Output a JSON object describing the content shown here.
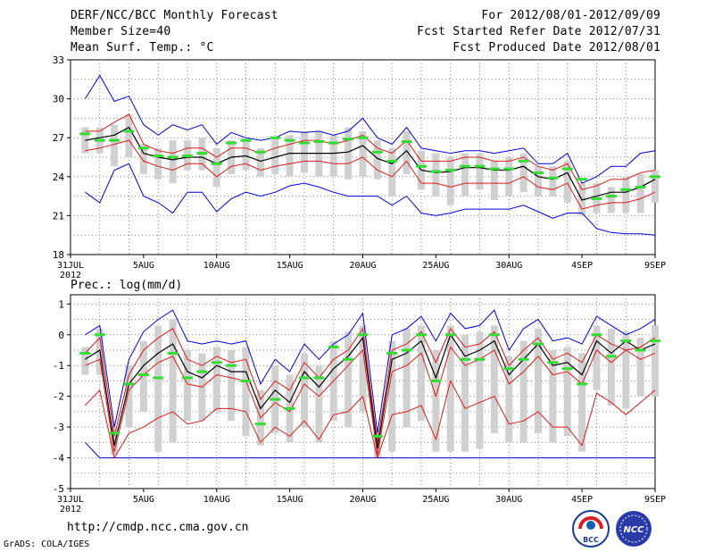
{
  "header": {
    "title": "DERF/NCC/BCC Monthly Forecast",
    "member_size": "Member Size=40",
    "variable": "Mean Surf. Temp.: °C",
    "forecast_period": "For 2012/08/01-2012/09/09",
    "fcst_started": "Fcst Started Refer Date 2012/07/31",
    "fcst_produced": "Fcst Produced Date 2012/08/01"
  },
  "footer": {
    "url": "http://cmdp.ncc.cma.gov.cn",
    "credit": "GrADS: COLA/IGES",
    "logo_left_text": "BCC",
    "logo_right_text": "NCC"
  },
  "colors": {
    "max_min": "#0000d8",
    "pct_band": "#d81c1c",
    "mean": "#000000",
    "box": "#d0d0d0",
    "observed": "#33dd33",
    "grid": "#888888"
  },
  "chart_data": [
    {
      "type": "line",
      "title": "Mean Surf. Temp.: °C",
      "x_tick_labels": [
        "31JUL",
        "5AUG",
        "10AUG",
        "15AUG",
        "20AUG",
        "25AUG",
        "30AUG",
        "4SEP",
        "9SEP"
      ],
      "x_tick_days": [
        0,
        5,
        10,
        15,
        20,
        25,
        30,
        35,
        40
      ],
      "x_year_label": "2012",
      "xlim": [
        0,
        40
      ],
      "ylim": [
        18,
        33
      ],
      "y_ticks": [
        18,
        21,
        24,
        27,
        30,
        33
      ],
      "days": [
        1,
        2,
        3,
        4,
        5,
        6,
        7,
        8,
        9,
        10,
        11,
        12,
        13,
        14,
        15,
        16,
        17,
        18,
        19,
        20,
        21,
        22,
        23,
        24,
        25,
        26,
        27,
        28,
        29,
        30,
        31,
        32,
        33,
        34,
        35,
        36,
        37,
        38,
        39,
        40
      ],
      "series": [
        {
          "name": "max",
          "values": [
            30.0,
            31.8,
            29.8,
            30.2,
            28.0,
            27.2,
            28.0,
            27.6,
            28.0,
            26.5,
            27.4,
            27.0,
            26.8,
            27.0,
            27.5,
            27.4,
            27.5,
            27.2,
            27.5,
            28.5,
            27.0,
            26.5,
            27.8,
            26.2,
            26.0,
            25.8,
            26.0,
            26.0,
            25.8,
            26.0,
            26.2,
            25.0,
            25.0,
            25.8,
            23.5,
            24.0,
            24.8,
            24.8,
            25.8,
            26.0
          ]
        },
        {
          "name": "p_upper",
          "values": [
            27.5,
            27.5,
            28.2,
            28.8,
            26.5,
            26.0,
            25.8,
            26.2,
            26.2,
            25.5,
            26.2,
            26.2,
            25.8,
            26.2,
            26.5,
            26.8,
            26.8,
            26.5,
            26.8,
            27.2,
            26.2,
            25.8,
            26.8,
            25.2,
            25.2,
            25.2,
            25.5,
            25.5,
            25.2,
            25.2,
            25.5,
            24.8,
            24.5,
            25.0,
            23.0,
            23.3,
            23.8,
            23.8,
            24.3,
            24.5
          ]
        },
        {
          "name": "mean",
          "values": [
            26.8,
            27.0,
            27.2,
            27.8,
            25.8,
            25.5,
            25.3,
            25.5,
            25.5,
            25.0,
            25.5,
            25.6,
            25.2,
            25.5,
            25.8,
            25.8,
            25.8,
            25.8,
            25.9,
            26.4,
            25.4,
            25.0,
            26.0,
            24.5,
            24.3,
            24.4,
            24.7,
            24.7,
            24.5,
            24.5,
            24.8,
            24.0,
            23.8,
            24.3,
            22.2,
            22.5,
            22.8,
            22.8,
            23.2,
            23.8
          ]
        },
        {
          "name": "p_lower",
          "values": [
            26.0,
            26.2,
            26.5,
            26.8,
            25.2,
            24.8,
            24.5,
            25.0,
            25.0,
            24.0,
            24.8,
            25.0,
            24.5,
            24.8,
            25.0,
            25.2,
            25.2,
            25.0,
            25.0,
            25.5,
            24.5,
            24.0,
            25.2,
            23.5,
            23.5,
            23.2,
            23.5,
            23.5,
            23.5,
            23.5,
            24.0,
            23.2,
            23.0,
            23.5,
            21.5,
            21.8,
            22.0,
            22.0,
            22.3,
            22.8
          ]
        },
        {
          "name": "min",
          "values": [
            22.8,
            22.0,
            24.5,
            25.0,
            22.5,
            22.0,
            21.2,
            22.8,
            22.8,
            21.3,
            22.3,
            22.8,
            22.5,
            22.8,
            23.3,
            23.5,
            23.2,
            22.8,
            22.5,
            22.5,
            22.5,
            21.8,
            22.5,
            21.2,
            21.0,
            21.2,
            21.5,
            21.5,
            21.5,
            21.5,
            21.8,
            21.3,
            20.8,
            21.2,
            21.2,
            20.0,
            19.7,
            19.6,
            19.6,
            19.5
          ]
        },
        {
          "name": "box_top",
          "values": [
            27.8,
            27.8,
            28.0,
            28.8,
            26.5,
            26.2,
            26.8,
            26.8,
            27.0,
            26.2,
            26.8,
            26.8,
            26.2,
            27.0,
            27.2,
            27.5,
            27.5,
            27.2,
            27.8,
            27.5,
            26.8,
            26.2,
            27.5,
            26.0,
            25.8,
            25.5,
            25.8,
            25.8,
            25.2,
            25.5,
            25.8,
            24.8,
            24.8,
            25.2,
            23.5,
            23.5,
            23.2,
            24.0,
            24.2,
            24.5
          ]
        },
        {
          "name": "box_bottom",
          "values": [
            25.8,
            25.8,
            24.8,
            25.5,
            24.2,
            23.8,
            23.5,
            24.5,
            24.5,
            23.2,
            24.2,
            24.5,
            24.0,
            24.2,
            24.0,
            24.3,
            24.0,
            24.0,
            23.8,
            24.0,
            23.8,
            22.5,
            24.2,
            23.0,
            22.5,
            21.8,
            22.5,
            23.0,
            22.2,
            22.5,
            22.8,
            22.5,
            22.5,
            22.0,
            21.0,
            21.2,
            21.2,
            21.2,
            21.2,
            22.0
          ]
        },
        {
          "name": "observed",
          "values": [
            27.3,
            26.8,
            26.8,
            27.5,
            26.2,
            25.6,
            25.5,
            25.6,
            25.8,
            25.0,
            26.6,
            26.8,
            25.9,
            27.0,
            26.8,
            26.6,
            26.7,
            26.6,
            26.9,
            27.0,
            25.9,
            25.2,
            26.7,
            24.8,
            24.4,
            24.5,
            24.8,
            24.8,
            24.6,
            24.6,
            25.2,
            24.3,
            23.9,
            24.6,
            23.8,
            22.3,
            22.5,
            23.0,
            23.2,
            24.0
          ]
        }
      ]
    },
    {
      "type": "line",
      "title": "Prec.: log(mm/d)",
      "x_tick_labels": [
        "31JUL",
        "5AUG",
        "10AUG",
        "15AUG",
        "20AUG",
        "25AUG",
        "30AUG",
        "4SEP",
        "9SEP"
      ],
      "x_tick_days": [
        0,
        5,
        10,
        15,
        20,
        25,
        30,
        35,
        40
      ],
      "x_year_label": "2012",
      "xlim": [
        0,
        40
      ],
      "ylim": [
        -5,
        1.3
      ],
      "y_ticks": [
        -5,
        -4,
        -3,
        -2,
        -1,
        0,
        1
      ],
      "days": [
        1,
        2,
        3,
        4,
        5,
        6,
        7,
        8,
        9,
        10,
        11,
        12,
        13,
        14,
        15,
        16,
        17,
        18,
        19,
        20,
        21,
        22,
        23,
        24,
        25,
        26,
        27,
        28,
        29,
        30,
        31,
        32,
        33,
        34,
        35,
        36,
        37,
        38,
        39,
        40
      ],
      "series": [
        {
          "name": "max",
          "values": [
            0.0,
            0.3,
            -3.0,
            -0.8,
            0.1,
            0.5,
            0.8,
            -0.2,
            -0.3,
            -0.2,
            -0.3,
            -0.2,
            -1.6,
            -0.8,
            -1.2,
            -0.3,
            -0.8,
            -0.3,
            0.0,
            0.7,
            -3.2,
            0.0,
            0.2,
            0.6,
            -0.2,
            0.7,
            0.2,
            0.3,
            0.8,
            -0.5,
            0.2,
            0.5,
            -0.2,
            -0.1,
            -0.3,
            0.6,
            0.3,
            0.0,
            0.2,
            0.5
          ]
        },
        {
          "name": "p_upper",
          "values": [
            -0.6,
            -0.1,
            -3.3,
            -1.3,
            -0.5,
            -0.1,
            0.2,
            -0.8,
            -1.0,
            -0.7,
            -0.9,
            -0.8,
            -2.1,
            -1.5,
            -1.8,
            -0.9,
            -1.4,
            -0.8,
            -0.5,
            0.2,
            -3.5,
            -0.5,
            -0.3,
            0.1,
            -0.9,
            0.2,
            -0.4,
            -0.3,
            0.1,
            -1.0,
            -0.5,
            -0.1,
            -0.8,
            -0.6,
            -0.9,
            0.0,
            -0.3,
            -0.5,
            -0.4,
            -0.1
          ]
        },
        {
          "name": "mean",
          "values": [
            -0.8,
            -0.5,
            -3.6,
            -1.6,
            -1.0,
            -0.6,
            -0.3,
            -1.2,
            -1.4,
            -1.0,
            -1.2,
            -1.2,
            -2.4,
            -1.8,
            -2.2,
            -1.2,
            -1.7,
            -1.1,
            -0.7,
            -0.1,
            -3.7,
            -0.8,
            -0.6,
            -0.2,
            -1.4,
            0.0,
            -0.7,
            -0.5,
            -0.2,
            -1.3,
            -0.8,
            -0.3,
            -1.0,
            -0.9,
            -1.3,
            -0.2,
            -0.6,
            -0.2,
            -0.5,
            -0.3
          ]
        },
        {
          "name": "p_lower",
          "values": [
            -1.0,
            -0.8,
            -3.8,
            -1.8,
            -1.3,
            -0.9,
            -0.7,
            -1.6,
            -1.7,
            -1.3,
            -1.4,
            -1.5,
            -2.7,
            -2.2,
            -2.5,
            -1.6,
            -2.0,
            -1.5,
            -1.0,
            -0.5,
            -3.9,
            -1.2,
            -1.0,
            -0.6,
            -2.0,
            -0.4,
            -1.0,
            -0.8,
            -0.5,
            -1.6,
            -1.2,
            -0.7,
            -1.3,
            -1.2,
            -1.6,
            -0.5,
            -0.9,
            -0.5,
            -0.8,
            -0.6
          ]
        },
        {
          "name": "p_low",
          "values": [
            -2.3,
            -1.8,
            -4.0,
            -3.2,
            -3.0,
            -2.7,
            -2.5,
            -2.9,
            -2.8,
            -2.4,
            -2.4,
            -2.5,
            -3.5,
            -3.0,
            -3.3,
            -2.8,
            -3.4,
            -2.6,
            -2.5,
            -2.0,
            -4.0,
            -2.6,
            -2.5,
            -2.3,
            -3.4,
            -1.5,
            -2.4,
            -2.2,
            -2.0,
            -2.9,
            -2.8,
            -2.5,
            -3.0,
            -3.0,
            -3.6,
            -1.9,
            -2.2,
            -2.6,
            -2.2,
            -1.8
          ]
        },
        {
          "name": "min",
          "values": [
            -3.5,
            -4.0,
            -4.0,
            -4.0,
            -4.0,
            -4.0,
            -4.0,
            -4.0,
            -4.0,
            -4.0,
            -4.0,
            -4.0,
            -4.0,
            -4.0,
            -4.0,
            -4.0,
            -4.0,
            -4.0,
            -4.0,
            -4.0,
            -4.0,
            -4.0,
            -4.0,
            -4.0,
            -4.0,
            -4.0,
            -4.0,
            -4.0,
            -4.0,
            -4.0,
            -4.0,
            -4.0,
            -4.0,
            -4.0,
            -4.0,
            -4.0,
            -4.0,
            -4.0,
            -4.0,
            -4.0
          ]
        },
        {
          "name": "box_top",
          "values": [
            -0.4,
            0.2,
            -3.0,
            -1.0,
            -0.2,
            0.3,
            0.5,
            -0.5,
            -0.6,
            -0.4,
            -0.5,
            -0.4,
            -1.8,
            -1.0,
            -1.3,
            -0.6,
            -1.0,
            -0.2,
            0.1,
            0.3,
            -3.2,
            -0.2,
            0.2,
            0.3,
            -0.5,
            0.3,
            0.0,
            0.1,
            0.3,
            -0.7,
            -0.2,
            0.2,
            -0.5,
            -0.4,
            -0.6,
            0.3,
            0.2,
            0.1,
            -0.1,
            0.3
          ]
        },
        {
          "name": "box_bottom",
          "values": [
            -1.3,
            -1.3,
            -3.9,
            -3.0,
            -2.5,
            -3.8,
            -3.5,
            -2.8,
            -2.8,
            -2.5,
            -2.8,
            -3.3,
            -3.6,
            -3.2,
            -3.5,
            -3.0,
            -3.5,
            -2.8,
            -3.0,
            -2.5,
            -4.0,
            -3.8,
            -3.0,
            -2.8,
            -3.8,
            -3.8,
            -3.8,
            -3.7,
            -3.2,
            -3.5,
            -3.5,
            -3.2,
            -3.5,
            -3.3,
            -3.8,
            -1.8,
            -2.3,
            -2.4,
            -2.0,
            -2.0
          ]
        },
        {
          "name": "observed",
          "values": [
            -0.6,
            0.0,
            -3.2,
            -1.6,
            -1.3,
            -1.4,
            -0.6,
            -1.4,
            -1.2,
            -0.9,
            -1.0,
            -1.5,
            -2.9,
            -2.1,
            -2.4,
            -1.4,
            -1.4,
            -0.4,
            -0.8,
            0.0,
            -3.3,
            -0.6,
            -0.5,
            0.0,
            -1.5,
            0.0,
            -0.8,
            -0.8,
            0.0,
            -1.1,
            -0.8,
            -0.3,
            -0.9,
            -1.1,
            -1.6,
            0.0,
            -0.7,
            -0.2,
            -0.5,
            -0.2
          ]
        }
      ]
    }
  ]
}
